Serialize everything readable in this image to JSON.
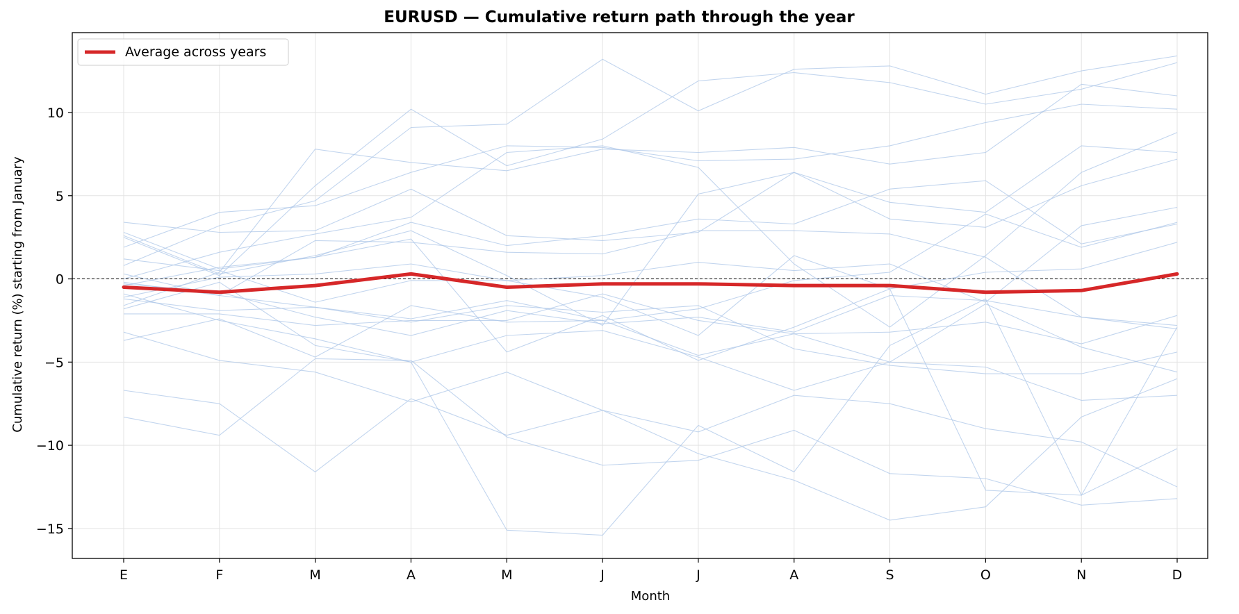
{
  "chart_data": {
    "type": "line",
    "title": "EURUSD — Cumulative return path through the year",
    "xlabel": "Month",
    "ylabel": "Cumulative return (%) starting from January",
    "categories": [
      "E",
      "F",
      "M",
      "A",
      "M",
      "J",
      "J",
      "A",
      "S",
      "O",
      "N",
      "D"
    ],
    "ylim": [
      -16.8,
      14.8
    ],
    "yticks": [
      -15,
      -10,
      -5,
      0,
      5,
      10
    ],
    "grid": true,
    "zero_line": true,
    "legend_position": "top-left",
    "colors": {
      "average": "#d62728",
      "years": "#aec7e8",
      "zero_line": "#000000",
      "grid": "#e3e3e3"
    },
    "average": {
      "name": "Average across years",
      "values": [
        -0.5,
        -0.8,
        -0.4,
        0.3,
        -0.5,
        -0.3,
        -0.3,
        -0.4,
        -0.4,
        -0.8,
        -0.7,
        0.3
      ]
    },
    "years": [
      {
        "values": [
          0.8,
          3.2,
          4.7,
          9.1,
          9.3,
          13.2,
          10.1,
          12.6,
          12.8,
          11.1,
          12.5,
          13.4
        ]
      },
      {
        "values": [
          2.5,
          0.2,
          5.6,
          10.2,
          6.8,
          8.4,
          11.9,
          12.4,
          11.8,
          10.5,
          11.4,
          13.0
        ]
      },
      {
        "values": [
          -1.6,
          0.4,
          7.8,
          7.0,
          6.5,
          7.8,
          7.6,
          7.9,
          6.9,
          7.6,
          11.7,
          11.0
        ]
      },
      {
        "values": [
          1.9,
          4.0,
          4.4,
          6.4,
          8.0,
          7.9,
          7.1,
          7.2,
          8.0,
          9.4,
          10.5,
          10.2
        ]
      },
      {
        "values": [
          0.0,
          1.6,
          2.7,
          3.7,
          7.6,
          8.0,
          6.7,
          0.9,
          -2.9,
          1.4,
          6.4,
          8.8
        ]
      },
      {
        "values": [
          3.4,
          2.8,
          2.9,
          5.4,
          2.6,
          2.3,
          2.8,
          6.4,
          4.6,
          4.0,
          8.0,
          7.6
        ]
      },
      {
        "values": [
          -0.4,
          0.7,
          1.3,
          3.4,
          2.0,
          2.6,
          3.6,
          3.3,
          5.4,
          5.9,
          2.1,
          3.3
        ]
      },
      {
        "values": [
          2.6,
          0.3,
          1.4,
          2.9,
          0.2,
          -2.8,
          5.1,
          6.4,
          3.6,
          3.1,
          5.6,
          7.2
        ]
      },
      {
        "values": [
          0.3,
          -1.0,
          2.3,
          2.2,
          1.6,
          1.5,
          2.9,
          2.9,
          2.7,
          1.3,
          -2.3,
          -2.8
        ]
      },
      {
        "values": [
          1.2,
          0.5,
          -1.4,
          -0.1,
          -0.1,
          0.2,
          1.0,
          0.5,
          0.9,
          -1.4,
          3.2,
          4.3
        ]
      },
      {
        "values": [
          -1.1,
          0.1,
          0.3,
          0.9,
          -0.1,
          -1.1,
          -3.4,
          1.4,
          -0.6,
          0.4,
          0.6,
          2.2
        ]
      },
      {
        "values": [
          -1.2,
          -1.9,
          -1.7,
          -2.4,
          -1.3,
          -2.5,
          -1.8,
          -0.1,
          0.4,
          3.9,
          1.9,
          3.4
        ]
      },
      {
        "values": [
          -0.3,
          -0.8,
          -2.3,
          -3.4,
          -1.9,
          -2.7,
          -2.3,
          -3.2,
          -1.0,
          -1.3,
          -2.3,
          -3.0
        ]
      },
      {
        "values": [
          -2.1,
          -2.1,
          -2.8,
          -2.5,
          -2.5,
          -0.9,
          -2.5,
          -3.3,
          -5.0,
          -1.5,
          -4.1,
          -5.6
        ]
      },
      {
        "values": [
          -3.7,
          -2.4,
          -4.7,
          -1.6,
          -2.6,
          -2.5,
          -4.6,
          -3.3,
          -3.2,
          -2.6,
          -3.9,
          -2.2
        ]
      },
      {
        "values": [
          -3.2,
          -4.9,
          -5.6,
          -7.4,
          -5.6,
          -7.9,
          -9.2,
          -7.0,
          -7.5,
          -9.0,
          -9.8,
          -12.5
        ]
      },
      {
        "values": [
          -6.7,
          -7.5,
          -11.6,
          -7.2,
          -9.4,
          -7.9,
          -10.5,
          -12.1,
          -14.5,
          -13.7,
          -8.3,
          -6.0
        ]
      },
      {
        "values": [
          -8.3,
          -9.4,
          -4.8,
          -4.9,
          -9.5,
          -11.2,
          -10.9,
          -9.1,
          -11.7,
          -12.0,
          -13.6,
          -13.2
        ]
      },
      {
        "values": [
          -1.8,
          -0.2,
          -4.0,
          -5.0,
          -3.4,
          -3.1,
          -4.7,
          -6.7,
          -5.0,
          -5.3,
          -7.3,
          -7.0
        ]
      },
      {
        "values": [
          -0.9,
          -2.5,
          -3.6,
          -5.0,
          -15.1,
          -15.4,
          -8.8,
          -11.6,
          -4.0,
          -1.2,
          -13.0,
          -2.9
        ]
      },
      {
        "values": [
          -0.2,
          -1.0,
          -1.7,
          -2.6,
          -1.6,
          -2.0,
          -1.6,
          -4.2,
          -5.2,
          -5.7,
          -5.7,
          -4.4
        ]
      },
      {
        "values": [
          2.8,
          0.6,
          1.3,
          2.4,
          -4.4,
          -2.2,
          -4.9,
          -2.9,
          -0.6,
          -12.7,
          -13.0,
          -10.2
        ]
      }
    ]
  }
}
